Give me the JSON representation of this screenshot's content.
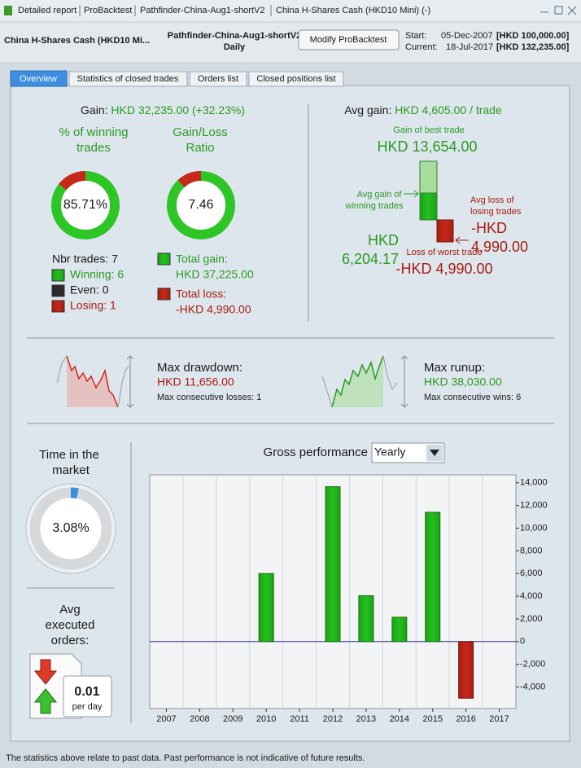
{
  "window_tabs": [
    "Detailed report",
    "ProBacktest",
    "Pathfinder-China-Aug1-shortV2",
    "China H-Shares Cash (HKD10 Mini) (-)"
  ],
  "header": {
    "instrument": "China H-Shares Cash (HKD10 Mi...",
    "strategy": "Pathfinder-China-Aug1-shortV2",
    "period": "Daily",
    "button": "Modify ProBacktest",
    "start_label": "Start:",
    "start_date": "05-Dec-2007",
    "start_capital": "[HKD 100,000.00]",
    "current_label": "Current:",
    "current_date": "18-Jul-2017",
    "current_capital": "[HKD 132,235.00]"
  },
  "tabs": [
    "Overview",
    "Statistics of closed trades",
    "Orders list",
    "Closed positions list"
  ],
  "gain": {
    "label": "Gain:",
    "value": "HKD 32,235.00 (+32.23%)"
  },
  "winning": {
    "title": [
      "% of winning",
      "trades"
    ],
    "rate": {
      "value": 85.71,
      "label": "85.71%"
    }
  },
  "ratio": {
    "title": [
      "Gain/Loss",
      "Ratio"
    ],
    "value": 7.46
  },
  "trades": {
    "count": "Nbr trades: 7",
    "winning": "Winning: 6",
    "even": "Even: 0",
    "losing": "Losing: 1"
  },
  "totals": {
    "gain_label": "Total gain:",
    "gain": "HKD 37,225.00",
    "loss_label": "Total loss:",
    "loss": "-HKD 4,990.00"
  },
  "avg_gain": {
    "label": "Avg gain:",
    "value": "HKD 4,605.00 / trade",
    "best_label": "Gain of best trade",
    "best": "HKD 13,654.00",
    "avg_win_label": [
      "Avg gain of",
      "winning trades"
    ],
    "avg_win": [
      "HKD",
      "6,204.17"
    ],
    "avg_loss_label": [
      "Avg loss of",
      "losing trades"
    ],
    "avg_loss": [
      "-HKD",
      "4,990.00"
    ],
    "worst_label": "Loss of worst trade",
    "worst": "-HKD 4,990.00"
  },
  "drawdown": {
    "label": "Max drawdown:",
    "value": "HKD 11,656.00",
    "detail": "Max consecutive losses: 1"
  },
  "runup": {
    "label": "Max runup:",
    "value": "HKD 38,030.00",
    "detail": "Max consecutive wins: 6"
  },
  "market_time": {
    "title": [
      "Time in the",
      "market"
    ],
    "rate": {
      "value": 3.08,
      "label": "3.08%"
    }
  },
  "orders": {
    "title": [
      "Avg",
      "executed",
      "orders:"
    ],
    "value": 0.01,
    "unit": "per day"
  },
  "chart_data": {
    "type": "bar",
    "title": "Gross performance",
    "period": "Yearly",
    "categories": [
      "2007",
      "2008",
      "2009",
      "2010",
      "2011",
      "2012",
      "2013",
      "2014",
      "2015",
      "2016",
      "2017"
    ],
    "values": [
      0,
      0,
      0,
      6000,
      0,
      13650,
      4050,
      2150,
      11400,
      -4990,
      0
    ],
    "color": "#22c11c",
    "negative_color": "#c8281a",
    "zero_line_color": "#2a2ab0",
    "ylim": [
      -5900,
      14700
    ],
    "yticks": [
      {
        "value": -4000,
        "label": "-4,000"
      },
      {
        "value": -2000,
        "label": "-2,000"
      },
      0,
      {
        "value": 2000,
        "label": "2,000"
      },
      {
        "value": 4000,
        "label": "4,000"
      },
      {
        "value": 6000,
        "label": "6,000"
      },
      {
        "value": 8000,
        "label": "8,000"
      },
      {
        "value": 10000,
        "label": "10,000"
      },
      {
        "value": 12000,
        "label": "12,000"
      },
      {
        "value": 14000,
        "label": "14,000"
      }
    ],
    "grid": true
  },
  "footer": "The statistics above relate to past data. Past performance is not indicative of future results."
}
